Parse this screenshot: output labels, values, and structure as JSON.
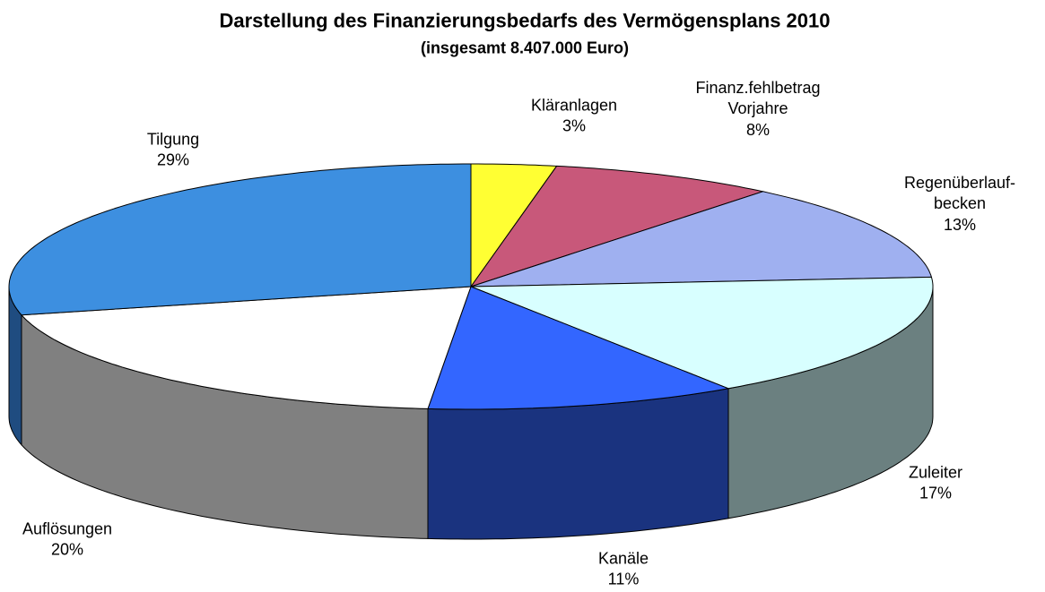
{
  "chart_data": {
    "type": "pie3d",
    "title": "Darstellung des Finanzierungsbedarfs des Vermögensplans 2010",
    "subtitle": "(insgesamt 8.407.000 Euro)",
    "categories": [
      "Kläranlagen",
      "Finanz.fehlbetrag\nVorjahre",
      "Regenüberlauf-\nbecken",
      "Zuleiter",
      "Kanäle",
      "Auflösungen",
      "Tilgung"
    ],
    "values": [
      3,
      8,
      13,
      17,
      11,
      20,
      29
    ],
    "value_labels": [
      "3%",
      "8%",
      "13%",
      "17%",
      "11%",
      "20%",
      "29%"
    ],
    "colors": [
      "#ffff33",
      "#c8587a",
      "#9fb0f0",
      "#d8ffff",
      "#3366ff",
      "#ffffff",
      "#3d8fe0"
    ],
    "side_colors": [
      "#999933",
      "#7a2a48",
      "#5a6a9a",
      "#6b8080",
      "#1a337f",
      "#808080",
      "#1f4c80"
    ]
  }
}
